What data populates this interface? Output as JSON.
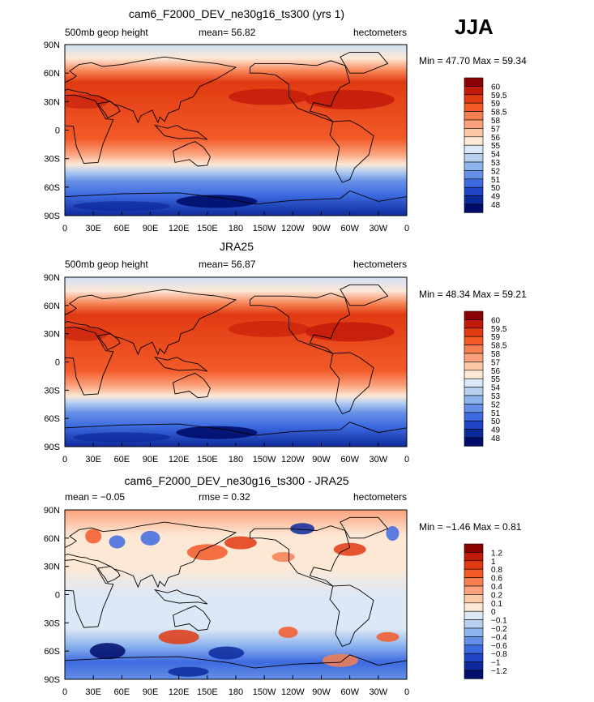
{
  "season": "JJA",
  "chart_data": [
    {
      "type": "heatmap",
      "title": "cam6_F2000_DEV_ne30g16_ts300 (yrs 1)",
      "left_label": "500mb geop height",
      "center_label": "mean=  56.82",
      "right_label": "hectometers",
      "min_max": "Min =  47.70  Max =  59.34",
      "xticks": [
        "0",
        "30E",
        "60E",
        "90E",
        "120E",
        "150E",
        "180",
        "150W",
        "120W",
        "90W",
        "60W",
        "30W",
        "0"
      ],
      "yticks": [
        "90N",
        "60N",
        "30N",
        "0",
        "30S",
        "60S",
        "90S"
      ],
      "colorbar_levels": [
        "60",
        "59.5",
        "59",
        "58.5",
        "58",
        "57",
        "56",
        "55",
        "54",
        "53",
        "52",
        "51",
        "50",
        "49",
        "48"
      ],
      "colorbar_colors": [
        "#8b0000",
        "#c11a0a",
        "#e03a12",
        "#f25a28",
        "#f77e50",
        "#fba27c",
        "#fdc8a8",
        "#fde8d6",
        "#dde8f6",
        "#b7d0f2",
        "#8eb4ee",
        "#6690e6",
        "#3d6ae0",
        "#1f44c8",
        "#0d2a9c",
        "#000d6b"
      ],
      "grid": "lat-lon 30deg",
      "region": "global"
    },
    {
      "type": "heatmap",
      "title": "JRA25",
      "left_label": "500mb geop height",
      "center_label": "mean=  56.87",
      "right_label": "hectometers",
      "min_max": "Min =  48.34  Max =  59.21",
      "xticks": [
        "0",
        "30E",
        "60E",
        "90E",
        "120E",
        "150E",
        "180",
        "150W",
        "120W",
        "90W",
        "60W",
        "30W",
        "0"
      ],
      "yticks": [
        "90N",
        "60N",
        "30N",
        "0",
        "30S",
        "60S",
        "90S"
      ],
      "colorbar_levels": [
        "60",
        "59.5",
        "59",
        "58.5",
        "58",
        "57",
        "56",
        "55",
        "54",
        "53",
        "52",
        "51",
        "50",
        "49",
        "48"
      ],
      "colorbar_colors": [
        "#8b0000",
        "#c11a0a",
        "#e03a12",
        "#f25a28",
        "#f77e50",
        "#fba27c",
        "#fdc8a8",
        "#fde8d6",
        "#dde8f6",
        "#b7d0f2",
        "#8eb4ee",
        "#6690e6",
        "#3d6ae0",
        "#1f44c8",
        "#0d2a9c",
        "#000d6b"
      ],
      "grid": "lat-lon 30deg",
      "region": "global"
    },
    {
      "type": "heatmap",
      "title": "cam6_F2000_DEV_ne30g16_ts300 - JRA25",
      "left_label": "mean =  −0.05",
      "center_label": "rmse =     0.32",
      "right_label": "hectometers",
      "min_max": "Min =  −1.46  Max =    0.81",
      "xticks": [
        "0",
        "30E",
        "60E",
        "90E",
        "120E",
        "150E",
        "180",
        "150W",
        "120W",
        "90W",
        "60W",
        "30W",
        "0"
      ],
      "yticks": [
        "90N",
        "60N",
        "30N",
        "0",
        "30S",
        "60S",
        "90S"
      ],
      "colorbar_levels": [
        "1.2",
        "1",
        "0.8",
        "0.6",
        "0.4",
        "0.2",
        "0.1",
        "0",
        "−0.1",
        "−0.2",
        "−0.4",
        "−0.6",
        "−0.8",
        "−1",
        "−1.2"
      ],
      "colorbar_colors": [
        "#8b0000",
        "#c11a0a",
        "#e03a12",
        "#f25a28",
        "#f77e50",
        "#fba27c",
        "#fdc8a8",
        "#fde8d6",
        "#dde8f6",
        "#b7d0f2",
        "#8eb4ee",
        "#6690e6",
        "#3d6ae0",
        "#1f44c8",
        "#0d2a9c",
        "#000d6b"
      ],
      "grid": "lat-lon 30deg",
      "region": "global"
    }
  ]
}
